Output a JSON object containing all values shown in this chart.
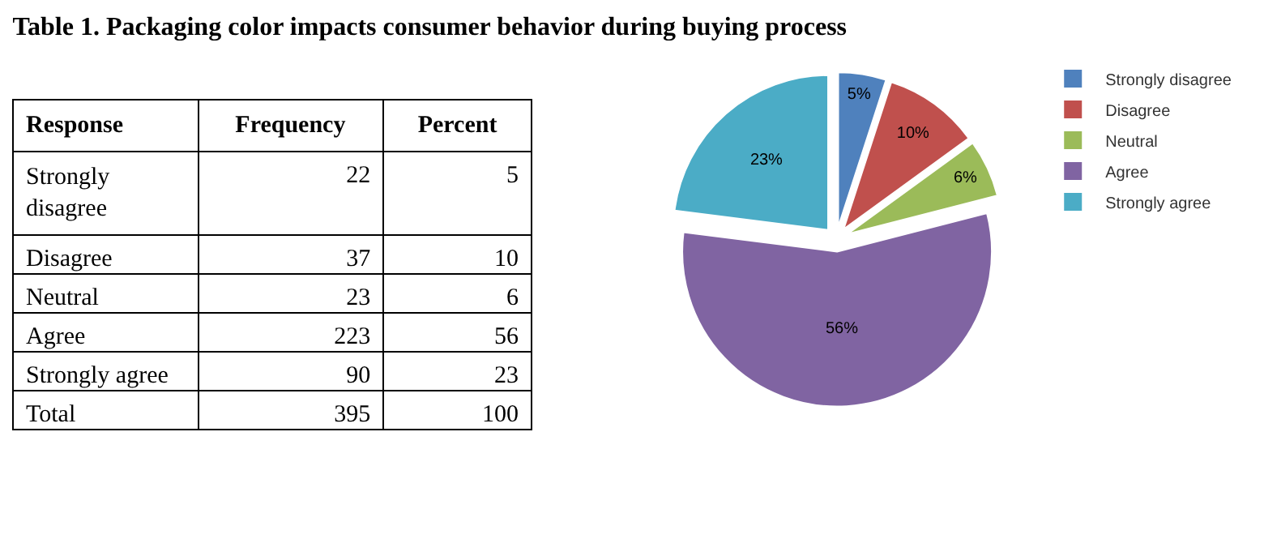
{
  "chart_data": [
    {
      "type": "other",
      "data_labels": true,
      "title": "Table 1. Packaging color impacts consumer behavior during buying process",
      "xlabel": "Response",
      "categories": [
        "Strongly disagree",
        "Disagree",
        "Neutral",
        "Agree",
        "Strongly agree",
        "Total"
      ],
      "series": [
        {
          "name": "Frequency",
          "values": [
            22,
            37,
            23,
            223,
            90,
            395
          ]
        },
        {
          "name": "Percent",
          "values": [
            5,
            10,
            6,
            56,
            23,
            100
          ]
        }
      ]
    },
    {
      "type": "pie",
      "categories": [
        "Strongly disagree",
        "Disagree",
        "Neutral",
        "Agree",
        "Strongly agree"
      ],
      "values": [
        5,
        10,
        6,
        56,
        23
      ],
      "colors": [
        "#4f81bd",
        "#c0504d",
        "#9bbb59",
        "#8064a2",
        "#4bacc6"
      ],
      "value_labels": [
        "5%",
        "10%",
        "6%",
        "56%",
        "23%"
      ],
      "legend": "right"
    }
  ]
}
